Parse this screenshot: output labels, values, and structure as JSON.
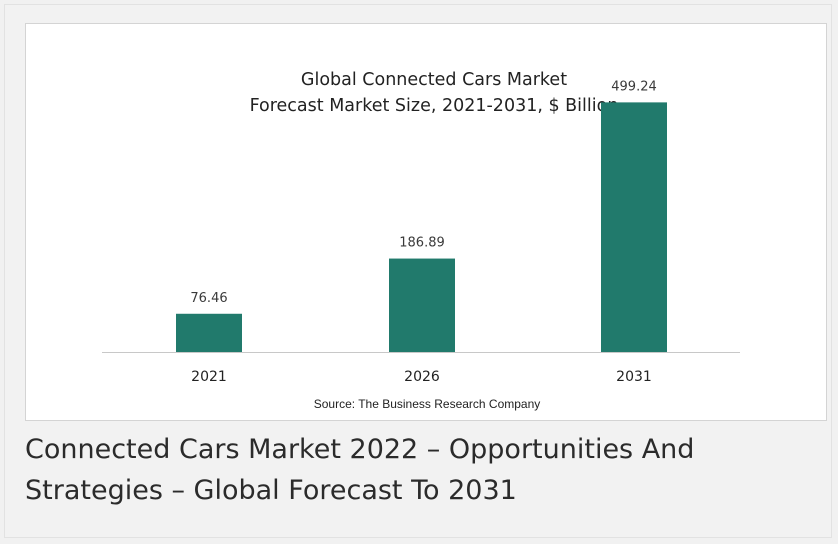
{
  "chart_data": {
    "type": "bar",
    "title": "Global Connected Cars Market",
    "subtitle": "Forecast Market Size, 2021-2031, $ Billion",
    "categories": [
      "2021",
      "2026",
      "2031"
    ],
    "values": [
      76.46,
      186.89,
      499.24
    ],
    "value_labels": [
      "76.46",
      "186.89",
      "499.24"
    ],
    "source": "Source: The Business Research Company",
    "xlabel": "",
    "ylabel": "",
    "ylim": [
      0,
      560
    ],
    "grid": false,
    "legend": "none",
    "bar_color": "#217a6c"
  },
  "caption": "Connected Cars Market 2022 – Opportunities And Strategies – Global Forecast To 2031"
}
